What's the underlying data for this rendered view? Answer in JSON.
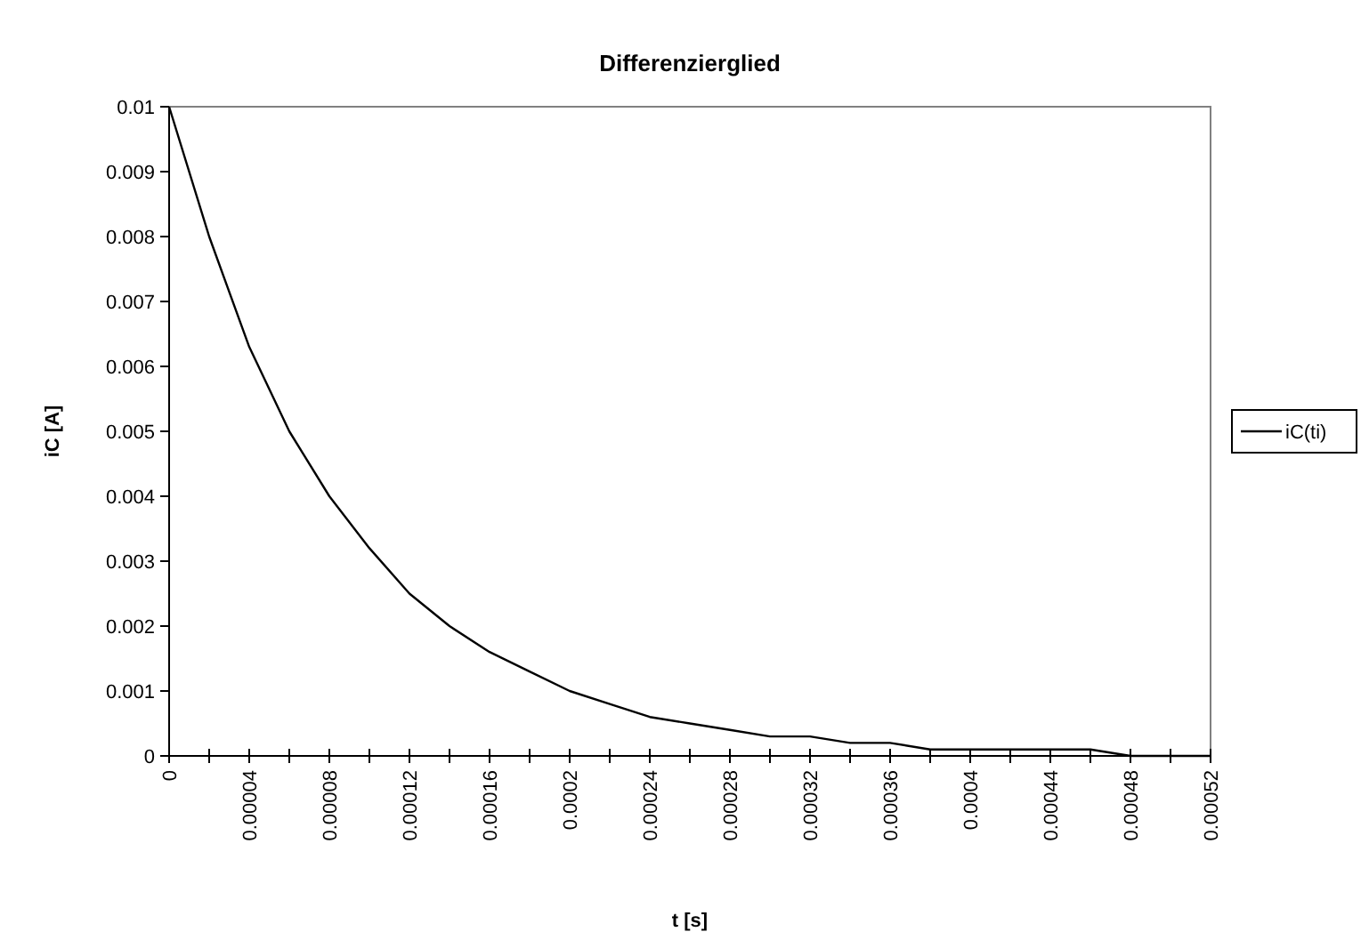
{
  "chart_data": {
    "type": "line",
    "title": "Differenzierglied",
    "xlabel": "t [s]",
    "ylabel": "iC [A]",
    "x": [
      0,
      2e-05,
      4e-05,
      6e-05,
      8e-05,
      0.0001,
      0.00012,
      0.00014,
      0.00016,
      0.00018,
      0.0002,
      0.00022,
      0.00024,
      0.00026,
      0.00028,
      0.0003,
      0.00032,
      0.00034,
      0.00036,
      0.00038,
      0.0004,
      0.00042,
      0.00044,
      0.00046,
      0.00048,
      0.0005,
      0.00052
    ],
    "series": [
      {
        "name": "iC(ti)",
        "color": "#000000",
        "values": [
          0.01,
          0.008,
          0.0063,
          0.005,
          0.004,
          0.0032,
          0.0025,
          0.002,
          0.0016,
          0.0013,
          0.001,
          0.0008,
          0.0006,
          0.0005,
          0.0004,
          0.0003,
          0.0003,
          0.0002,
          0.0002,
          0.0001,
          0.0001,
          0.0001,
          0.0001,
          0.0001,
          0,
          0,
          0
        ]
      }
    ],
    "xlim": [
      0,
      0.00052
    ],
    "xticks": [
      0,
      {
        "value": 2e-05,
        "label": null
      },
      {
        "value": 4e-05,
        "label": "0.00004"
      },
      {
        "value": 6e-05,
        "label": null
      },
      {
        "value": 8e-05,
        "label": "0.00008"
      },
      {
        "value": 0.0001,
        "label": null
      },
      0.00012,
      {
        "value": 0.00014,
        "label": null
      },
      0.00016,
      {
        "value": 0.00018,
        "label": null
      },
      0.0002,
      {
        "value": 0.00022,
        "label": null
      },
      0.00024,
      {
        "value": 0.00026,
        "label": null
      },
      0.00028,
      {
        "value": 0.0003,
        "label": null
      },
      0.00032,
      {
        "value": 0.00034,
        "label": null
      },
      0.00036,
      {
        "value": 0.00038,
        "label": null
      },
      0.0004,
      {
        "value": 0.00042,
        "label": null
      },
      0.00044,
      {
        "value": 0.00046,
        "label": null
      },
      0.00048,
      {
        "value": 0.0005,
        "label": null
      },
      0.00052
    ],
    "ylim": [
      0,
      0.01
    ],
    "yticks": [
      0,
      0.001,
      0.002,
      0.003,
      0.004,
      0.005,
      0.006,
      0.007,
      0.008,
      0.009,
      0.01
    ],
    "grid": false,
    "legend": "right",
    "line_style": "solid"
  }
}
